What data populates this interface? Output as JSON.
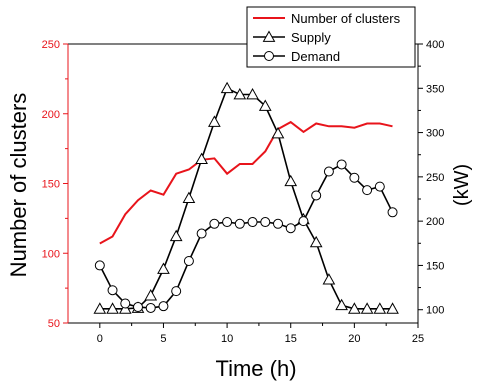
{
  "chart_data": {
    "type": "line",
    "xlabel": "Time (h)",
    "ylabel_left": "Number of clusters",
    "ylabel_right": "(kW)",
    "xlim": [
      -2.5,
      25
    ],
    "xticks": [
      0,
      5,
      10,
      15,
      20,
      25
    ],
    "ylim_left": [
      50,
      250
    ],
    "yticks_left": [
      50,
      100,
      150,
      200,
      250
    ],
    "ylim_right": [
      85,
      400
    ],
    "yticks_right": [
      100,
      150,
      200,
      250,
      300,
      350,
      400
    ],
    "legend_position": "top-right",
    "colors": {
      "clusters": "#e8141b",
      "supply": "#000000",
      "demand": "#000000",
      "left_axis": "#e8141b",
      "right_axis": "#000000"
    },
    "series": [
      {
        "name": "Number of clusters",
        "axis": "left",
        "marker": "none",
        "x": [
          0,
          1,
          2,
          3,
          4,
          5,
          6,
          7,
          8,
          9,
          10,
          11,
          12,
          13,
          14,
          15,
          16,
          17,
          18,
          19,
          20,
          21,
          22,
          23
        ],
        "values": [
          107,
          112,
          128,
          138,
          145,
          142,
          157,
          160,
          167,
          168,
          157,
          164,
          164,
          173,
          189,
          194,
          187,
          193,
          191,
          191,
          190,
          193,
          193,
          191
        ]
      },
      {
        "name": "Supply",
        "axis": "right",
        "marker": "triangle",
        "x": [
          0,
          1,
          2,
          3,
          4,
          5,
          6,
          7,
          8,
          9,
          10,
          11,
          12,
          13,
          14,
          15,
          16,
          17,
          18,
          19,
          20,
          21,
          22,
          23
        ],
        "values": [
          101,
          101,
          101,
          102,
          116,
          146,
          183,
          226,
          270,
          312,
          350,
          343,
          343,
          330,
          299,
          245,
          202,
          176,
          134,
          105,
          101,
          101,
          101,
          101
        ]
      },
      {
        "name": "Demand",
        "axis": "right",
        "marker": "circle",
        "x": [
          0,
          1,
          2,
          3,
          4,
          5,
          6,
          7,
          8,
          9,
          10,
          11,
          12,
          13,
          14,
          15,
          16,
          17,
          18,
          19,
          20,
          21,
          22,
          23
        ],
        "values": [
          150,
          122,
          107,
          103,
          102,
          104,
          121,
          155,
          186,
          197,
          199,
          197,
          199,
          199,
          197,
          192,
          200,
          229,
          256,
          264,
          249,
          235,
          239,
          210
        ]
      }
    ]
  }
}
